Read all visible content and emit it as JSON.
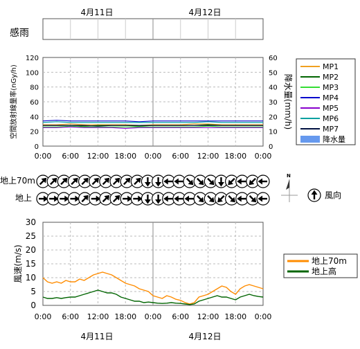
{
  "dates": [
    "4月11日",
    "4月12日"
  ],
  "rain_panel": {
    "label": "感雨"
  },
  "colors": {
    "MP1": "#f0a020",
    "MP2": "#006400",
    "MP3": "#33dd33",
    "MP4": "#0000cc",
    "MP5": "#8800cc",
    "MP6": "#00a0a0",
    "MP7": "#001040",
    "rain": "#6699ee",
    "wind70": "#ff8c00",
    "windHigh": "#006400"
  },
  "time_ticks": [
    "0:00",
    "6:00",
    "12:00",
    "18:00",
    "0:00",
    "6:00",
    "12:00",
    "18:00",
    "0:00"
  ],
  "chart_data": [
    {
      "type": "line",
      "ylabel": "空間放射線量率(nGy/h)",
      "y2label": "降水量(mm/h)",
      "ylim": [
        0,
        120
      ],
      "y2lim": [
        0,
        60
      ],
      "yticks": [
        "0",
        "20",
        "40",
        "60",
        "80",
        "100",
        "120"
      ],
      "y2ticks": [
        "0",
        "10",
        "20",
        "30",
        "40",
        "50",
        "60"
      ],
      "xlim_hours": [
        0,
        48
      ],
      "grid": true,
      "legend_position": "right",
      "legend": [
        "MP1",
        "MP2",
        "MP3",
        "MP4",
        "MP5",
        "MP6",
        "MP7",
        "降水量"
      ],
      "series": [
        {
          "name": "MP1",
          "values": [
            29,
            29,
            30,
            29,
            29,
            29,
            29,
            28,
            29,
            29,
            29,
            30,
            30,
            29,
            29,
            29,
            29
          ]
        },
        {
          "name": "MP2",
          "values": [
            28,
            28,
            28,
            27,
            28,
            28,
            28,
            27,
            28,
            28,
            28,
            28,
            29,
            28,
            28,
            28,
            28
          ]
        },
        {
          "name": "MP3",
          "values": [
            26,
            26,
            27,
            26,
            26,
            26,
            26,
            26,
            26,
            26,
            26,
            26,
            27,
            26,
            26,
            26,
            26
          ]
        },
        {
          "name": "MP4",
          "values": [
            34,
            35,
            34,
            34,
            34,
            34,
            34,
            33,
            34,
            34,
            34,
            34,
            34,
            34,
            34,
            34,
            34
          ]
        },
        {
          "name": "MP5",
          "values": [
            25,
            25,
            26,
            25,
            25,
            25,
            24,
            25,
            25,
            25,
            25,
            25,
            25,
            25,
            25,
            25,
            25
          ]
        },
        {
          "name": "MP6",
          "values": [
            32,
            33,
            32,
            32,
            32,
            32,
            32,
            32,
            32,
            32,
            32,
            32,
            33,
            32,
            32,
            32,
            32
          ]
        },
        {
          "name": "MP7",
          "values": [
            28,
            28,
            28,
            28,
            27,
            28,
            28,
            28,
            28,
            28,
            28,
            28,
            28,
            28,
            28,
            28,
            28
          ]
        }
      ],
      "rain": []
    },
    {
      "type": "table",
      "rows": [
        {
          "label": "地上70m",
          "directions": [
            "NE",
            "NE",
            "NE",
            "NE",
            "NE",
            "NE",
            "NE",
            "NE",
            "NE",
            "NE",
            "S",
            "S",
            "W",
            "W",
            "SE",
            "SE",
            "SE",
            "S",
            "SW",
            "W",
            "SW",
            "W"
          ]
        },
        {
          "label": "地上",
          "directions": [
            "E",
            "E",
            "E",
            "E",
            "NE",
            "E",
            "NE",
            "NE",
            "E",
            "E",
            "S",
            "S",
            "W",
            "W",
            "W",
            "SE",
            "SE",
            "SW",
            "SE",
            "W",
            "SE",
            "W"
          ]
        }
      ],
      "legend": "風向"
    },
    {
      "type": "line",
      "ylabel": "風速(m/s)",
      "ylim": [
        0,
        30
      ],
      "yticks": [
        "0",
        "5",
        "10",
        "15",
        "20",
        "25",
        "30"
      ],
      "xlim_hours": [
        0,
        48
      ],
      "grid": true,
      "legend_position": "right",
      "series": [
        {
          "name": "地上70m",
          "x": [
            0,
            1,
            2,
            3,
            4,
            5,
            6,
            7,
            8,
            9,
            10,
            11,
            12,
            13,
            14,
            15,
            16,
            17,
            18,
            19,
            20,
            21,
            22,
            23,
            24,
            25,
            26,
            27,
            28,
            29,
            30,
            31,
            32,
            33,
            34,
            35,
            36,
            37,
            38,
            39,
            40,
            41,
            42,
            43,
            44,
            45,
            46,
            47,
            48
          ],
          "values": [
            10,
            8.5,
            8,
            8.5,
            8,
            9,
            8.5,
            8.5,
            9.5,
            9,
            10,
            11,
            11.5,
            12,
            11.5,
            11,
            10,
            9,
            8,
            7.5,
            7,
            6,
            5.5,
            5,
            3.5,
            3,
            2.5,
            3.5,
            3,
            2.2,
            1.8,
            1,
            0.5,
            1,
            3,
            3.5,
            4,
            5,
            6,
            7,
            6.5,
            5,
            4,
            6,
            7,
            7.5,
            7,
            6.5,
            6
          ]
        },
        {
          "name": "地上高",
          "x": [
            0,
            1,
            2,
            3,
            4,
            5,
            6,
            7,
            8,
            9,
            10,
            11,
            12,
            13,
            14,
            15,
            16,
            17,
            18,
            19,
            20,
            21,
            22,
            23,
            24,
            25,
            26,
            27,
            28,
            29,
            30,
            31,
            32,
            33,
            34,
            35,
            36,
            37,
            38,
            39,
            40,
            41,
            42,
            43,
            44,
            45,
            46,
            47,
            48
          ],
          "values": [
            3,
            2.5,
            2.5,
            2.8,
            2.5,
            2.8,
            3,
            3,
            3.5,
            4,
            4.5,
            5,
            5.5,
            5,
            4.5,
            4.5,
            4,
            3,
            2.5,
            2,
            1.5,
            1.5,
            1,
            1.2,
            1,
            0.8,
            0.7,
            0.8,
            1,
            0.8,
            0.7,
            0.5,
            0.3,
            0.5,
            1.5,
            2,
            2.5,
            3,
            3.5,
            3,
            3,
            2.5,
            2,
            3,
            3.5,
            4,
            3.5,
            3.2,
            3
          ]
        }
      ]
    }
  ]
}
